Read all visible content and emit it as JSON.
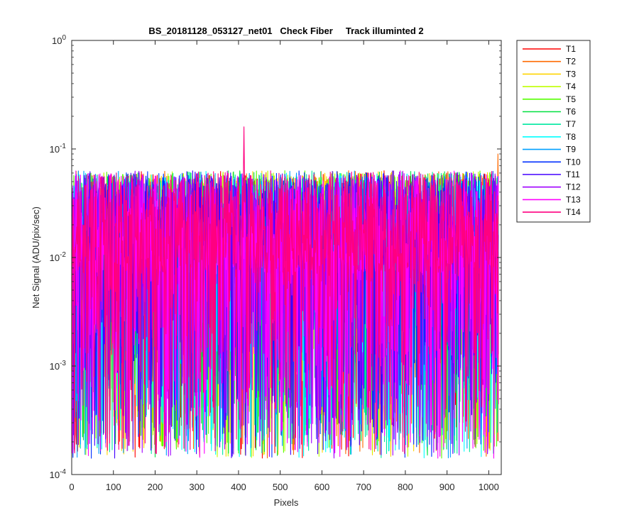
{
  "chart_data": {
    "type": "line",
    "title": "BS_20181128_053127_net01   Check Fiber     Track illuminted 2",
    "xlabel": "Pixels",
    "ylabel": "Net Signal (ADU/pix/sec)",
    "xlim": [
      0,
      1030
    ],
    "ylim": [
      0.0001,
      1
    ],
    "yscale": "log",
    "x_ticks": [
      0,
      100,
      200,
      300,
      400,
      500,
      600,
      700,
      800,
      900,
      1000
    ],
    "y_ticks": [
      {
        "base": "10",
        "exp": "-4"
      },
      {
        "base": "10",
        "exp": "-3"
      },
      {
        "base": "10",
        "exp": "-2"
      },
      {
        "base": "10",
        "exp": "-1"
      },
      {
        "base": "10",
        "exp": "0"
      }
    ],
    "grid": false,
    "legend_position": "outside top-right",
    "n_pixels": 1024,
    "series": [
      {
        "name": "T1",
        "color": "#ff0000"
      },
      {
        "name": "T2",
        "color": "#ff6a00"
      },
      {
        "name": "T3",
        "color": "#ffd400"
      },
      {
        "name": "T4",
        "color": "#bfff00"
      },
      {
        "name": "T5",
        "color": "#55ff00"
      },
      {
        "name": "T6",
        "color": "#00e040"
      },
      {
        "name": "T7",
        "color": "#00e8a0"
      },
      {
        "name": "T8",
        "color": "#00ffff"
      },
      {
        "name": "T9",
        "color": "#00a0ff"
      },
      {
        "name": "T10",
        "color": "#0030ff"
      },
      {
        "name": "T11",
        "color": "#4400ff"
      },
      {
        "name": "T12",
        "color": "#a000ff"
      },
      {
        "name": "T13",
        "color": "#ff00ff"
      },
      {
        "name": "T14",
        "color": "#ff0080"
      }
    ],
    "features": {
      "typical_level": 0.02,
      "upper_envelope": 0.06,
      "lower_envelope": 0.00013,
      "peak": {
        "series": "T14",
        "x": 413,
        "y": 0.16
      },
      "end_spike": {
        "series": "T2",
        "x": 1022,
        "y": 0.09
      }
    }
  }
}
